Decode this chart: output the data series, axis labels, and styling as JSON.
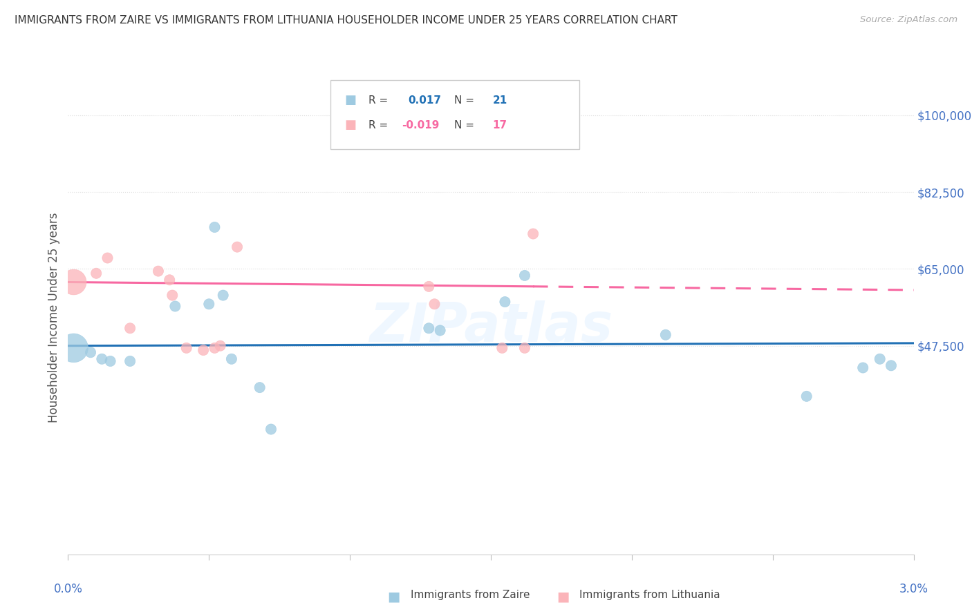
{
  "title": "IMMIGRANTS FROM ZAIRE VS IMMIGRANTS FROM LITHUANIA HOUSEHOLDER INCOME UNDER 25 YEARS CORRELATION CHART",
  "source": "Source: ZipAtlas.com",
  "ylabel": "Householder Income Under 25 years",
  "zaire_R": "0.017",
  "zaire_N": "21",
  "lithuania_R": "-0.019",
  "lithuania_N": "17",
  "zaire_color": "#9ecae1",
  "lithuania_color": "#fbb4b9",
  "zaire_line_color": "#2171b5",
  "lithuania_line_color": "#f768a1",
  "ytick_vals": [
    47500,
    65000,
    82500,
    100000
  ],
  "ytick_labels": [
    "$47,500",
    "$65,000",
    "$82,500",
    "$100,000"
  ],
  "xlim": [
    0.0,
    3.0
  ],
  "ylim": [
    0,
    108000
  ],
  "zaire_x": [
    0.02,
    0.08,
    0.12,
    0.22,
    0.38,
    0.5,
    0.52,
    0.55,
    0.58,
    0.68,
    0.72,
    1.28,
    1.32,
    1.55,
    1.62,
    2.12,
    2.62,
    2.82,
    2.88,
    2.92,
    0.15
  ],
  "zaire_y": [
    47000,
    46000,
    44500,
    44000,
    56500,
    57000,
    74500,
    59000,
    44500,
    38000,
    28500,
    51500,
    51000,
    57500,
    63500,
    50000,
    36000,
    42500,
    44500,
    43000,
    44000
  ],
  "zaire_size": [
    900,
    120,
    120,
    120,
    120,
    120,
    120,
    120,
    120,
    120,
    120,
    120,
    120,
    120,
    120,
    120,
    120,
    120,
    120,
    120,
    120
  ],
  "lithuania_x": [
    0.02,
    0.1,
    0.14,
    0.22,
    0.32,
    0.36,
    0.37,
    0.42,
    0.48,
    0.52,
    0.54,
    0.6,
    1.28,
    1.3,
    1.54,
    1.62,
    1.65
  ],
  "lithuania_y": [
    62000,
    64000,
    67500,
    51500,
    64500,
    62500,
    59000,
    47000,
    46500,
    47000,
    47500,
    70000,
    61000,
    57000,
    47000,
    47000,
    73000
  ],
  "lithuania_size": [
    700,
    120,
    120,
    120,
    120,
    120,
    120,
    120,
    120,
    120,
    120,
    120,
    120,
    120,
    120,
    120,
    120
  ],
  "zaire_line_intercept": 47500,
  "zaire_line_slope": 200,
  "lithuania_line_intercept": 62000,
  "lithuania_line_slope": -600,
  "lithuania_solid_xmax": 1.65,
  "watermark": "ZIPatlas",
  "background_color": "#ffffff",
  "grid_color": "#dddddd",
  "axis_label_color": "#4472c4",
  "title_color": "#333333",
  "source_color": "#aaaaaa"
}
